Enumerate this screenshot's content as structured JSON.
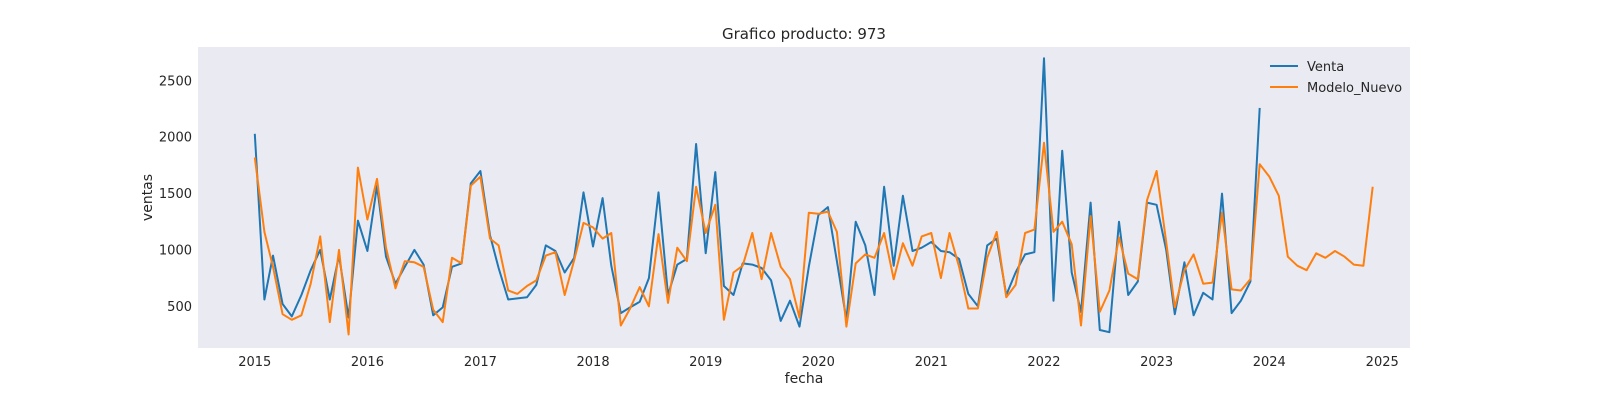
{
  "chart_data": {
    "type": "line",
    "title": "Grafico producto: 973",
    "xlabel": "fecha",
    "ylabel": "ventas",
    "xlim": [
      "2014-07-01",
      "2025-04-01"
    ],
    "ylim": [
      130,
      2800
    ],
    "x_ticks": [
      "2015",
      "2016",
      "2017",
      "2018",
      "2019",
      "2020",
      "2021",
      "2022",
      "2023",
      "2024",
      "2025"
    ],
    "y_ticks": [
      500,
      1000,
      1500,
      2000,
      2500
    ],
    "grid": false,
    "legend_position": "top-right",
    "background_color": "#eaeaf2",
    "series": [
      {
        "name": "Venta",
        "color": "#1f77b4",
        "start": "2015-01",
        "values": [
          2030,
          560,
          950,
          520,
          410,
          600,
          820,
          1000,
          560,
          950,
          400,
          1260,
          990,
          1570,
          940,
          700,
          850,
          1000,
          870,
          420,
          490,
          850,
          880,
          1590,
          1700,
          1130,
          840,
          560,
          570,
          580,
          690,
          1040,
          990,
          800,
          930,
          1510,
          1030,
          1460,
          860,
          440,
          490,
          540,
          750,
          1510,
          600,
          870,
          920,
          1940,
          970,
          1690,
          680,
          600,
          880,
          870,
          840,
          730,
          370,
          550,
          320,
          850,
          1310,
          1380,
          900,
          380,
          1250,
          1040,
          600,
          1560,
          860,
          1480,
          990,
          1020,
          1070,
          990,
          980,
          920,
          610,
          500,
          1040,
          1100,
          600,
          800,
          960,
          980,
          2700,
          550,
          1880,
          800,
          450,
          1420,
          290,
          270,
          1250,
          600,
          720,
          1420,
          1400,
          1000,
          430,
          890,
          420,
          620,
          560,
          1500,
          440,
          550,
          720,
          2260
        ]
      },
      {
        "name": "Modelo_Nuevo",
        "color": "#ff7f0e",
        "start": "2015-01",
        "values": [
          1820,
          1160,
          850,
          430,
          380,
          420,
          700,
          1120,
          360,
          1000,
          250,
          1730,
          1270,
          1630,
          1020,
          660,
          900,
          890,
          850,
          470,
          360,
          930,
          880,
          1570,
          1650,
          1100,
          1040,
          640,
          610,
          680,
          730,
          950,
          980,
          600,
          910,
          1240,
          1200,
          1100,
          1150,
          330,
          480,
          670,
          500,
          1140,
          530,
          1020,
          900,
          1560,
          1150,
          1400,
          380,
          800,
          860,
          1150,
          740,
          1150,
          850,
          740,
          400,
          1330,
          1320,
          1340,
          1160,
          320,
          880,
          960,
          930,
          1150,
          740,
          1060,
          860,
          1120,
          1150,
          750,
          1150,
          850,
          480,
          480,
          930,
          1160,
          580,
          690,
          1150,
          1180,
          1950,
          1160,
          1250,
          1050,
          330,
          1300,
          450,
          640,
          1110,
          790,
          740,
          1440,
          1700,
          1070,
          490,
          820,
          960,
          700,
          710,
          1330,
          650,
          640,
          740,
          1760,
          1650,
          1480,
          940,
          860,
          820,
          970,
          930,
          990,
          940,
          870,
          860,
          1560
        ]
      }
    ]
  }
}
